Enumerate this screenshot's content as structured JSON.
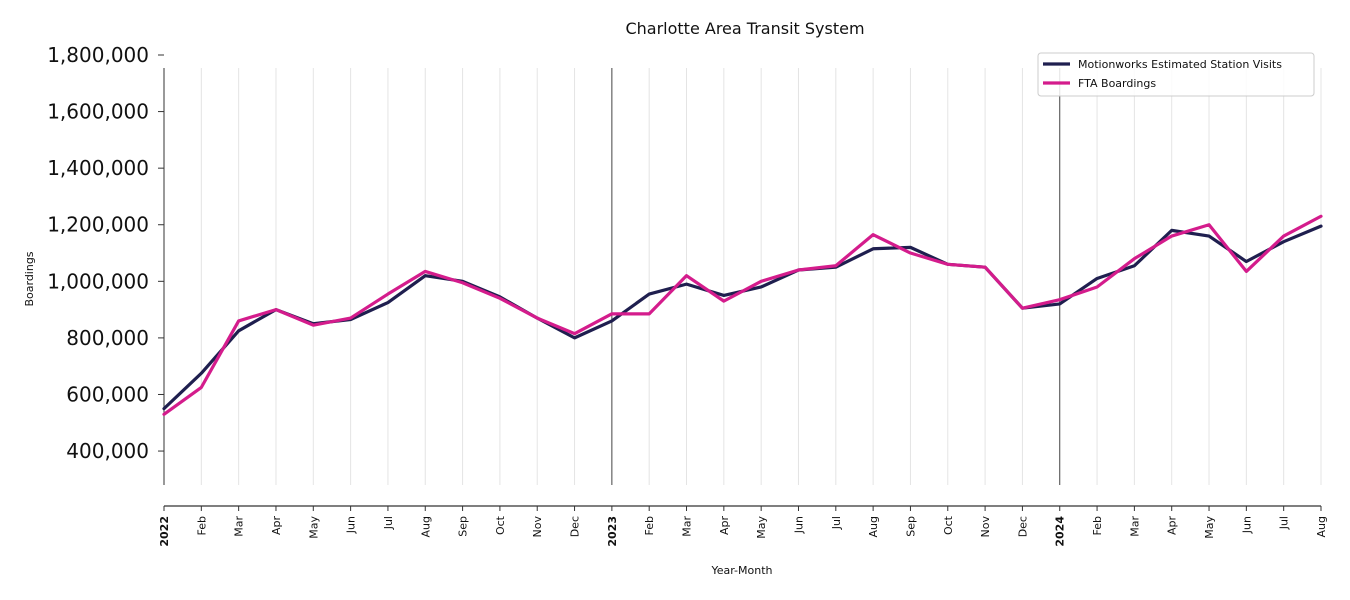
{
  "chart_data": {
    "type": "line",
    "title": "Charlotte Area Transit System",
    "xlabel": "Year-Month",
    "ylabel": "Boardings",
    "ylim": [
      280000,
      1800000
    ],
    "yticks": [
      400000,
      600000,
      800000,
      1000000,
      1200000,
      1400000,
      1600000,
      1800000
    ],
    "ytick_labels": [
      "400,000",
      "600,000",
      "800,000",
      "1,000,000",
      "1,200,000",
      "1,400,000",
      "1,600,000",
      "1,800,000"
    ],
    "categories": [
      "2022",
      "Feb",
      "Mar",
      "Apr",
      "May",
      "Jun",
      "Jul",
      "Aug",
      "Sep",
      "Oct",
      "Nov",
      "Dec",
      "2023",
      "Feb",
      "Mar",
      "Apr",
      "May",
      "Jun",
      "Jul",
      "Aug",
      "Sep",
      "Oct",
      "Nov",
      "Dec",
      "2024",
      "Feb",
      "Mar",
      "Apr",
      "May",
      "Jun",
      "Jul",
      "Aug"
    ],
    "year_indices": [
      0,
      12,
      24
    ],
    "grid": "vertical",
    "legend_position": "top-right",
    "series": [
      {
        "name": "Motionworks Estimated Station Visits",
        "color": "#1f1f4f",
        "values": [
          550000,
          675000,
          825000,
          900000,
          850000,
          865000,
          925000,
          1020000,
          1000000,
          945000,
          870000,
          800000,
          860000,
          955000,
          990000,
          950000,
          980000,
          1040000,
          1050000,
          1115000,
          1120000,
          1060000,
          1050000,
          905000,
          920000,
          1010000,
          1055000,
          1180000,
          1160000,
          1070000,
          1140000,
          1195000
        ]
      },
      {
        "name": "FTA Boardings",
        "color": "#d41c8c",
        "values": [
          530000,
          625000,
          860000,
          900000,
          845000,
          870000,
          955000,
          1035000,
          995000,
          940000,
          870000,
          815000,
          885000,
          885000,
          1020000,
          930000,
          1000000,
          1040000,
          1055000,
          1165000,
          1100000,
          1060000,
          1050000,
          905000,
          935000,
          980000,
          1080000,
          1160000,
          1200000,
          1035000,
          1160000,
          1230000
        ]
      }
    ]
  }
}
